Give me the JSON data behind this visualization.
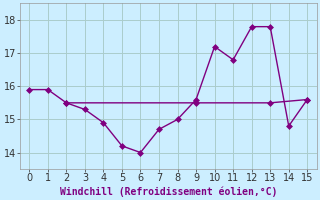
{
  "line1_x": [
    0,
    1,
    2,
    3,
    4,
    5,
    6,
    7,
    8,
    9,
    10,
    11,
    12,
    13,
    14,
    15
  ],
  "line1_y": [
    15.9,
    15.9,
    15.5,
    15.3,
    14.9,
    14.2,
    14.0,
    14.7,
    15.0,
    15.6,
    17.2,
    16.8,
    17.8,
    17.8,
    14.8,
    15.6
  ],
  "line2_x": [
    2,
    9,
    13,
    15
  ],
  "line2_y": [
    15.5,
    15.5,
    15.5,
    15.6
  ],
  "color": "#800080",
  "bg_color": "#cceeff",
  "grid_color": "#aacccc",
  "xlabel": "Windchill (Refroidissement éolien,°C)",
  "xlim": [
    -0.5,
    15.5
  ],
  "ylim": [
    13.5,
    18.5
  ],
  "yticks": [
    14,
    15,
    16,
    17,
    18
  ],
  "xticks": [
    0,
    1,
    2,
    3,
    4,
    5,
    6,
    7,
    8,
    9,
    10,
    11,
    12,
    13,
    14,
    15
  ],
  "linewidth": 1.0,
  "markersize": 3.0,
  "tick_fontsize": 7,
  "xlabel_fontsize": 7
}
